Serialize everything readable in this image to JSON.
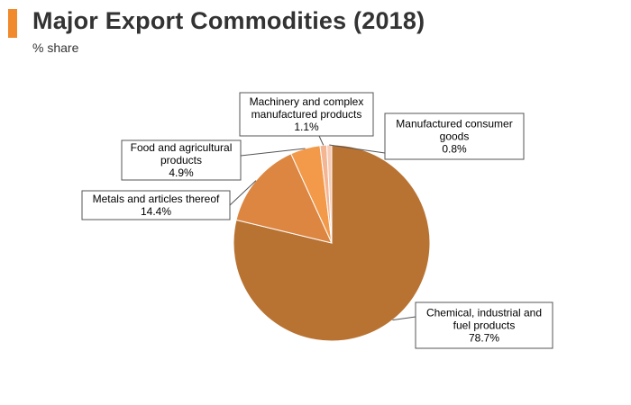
{
  "header": {
    "title": "Major Export Commodities (2018)",
    "subtitle": "% share",
    "accent_color": "#f08a2c"
  },
  "chart_data": {
    "type": "pie",
    "title": "Major Export Commodities (2018)",
    "subtitle": "% share",
    "slices": [
      {
        "name": "Chemical, industrial and fuel products",
        "value": 78.7,
        "value_label": "78.7%",
        "label_lines": [
          "Chemical, industrial and",
          "fuel products"
        ],
        "color": "#b87333"
      },
      {
        "name": "Metals and articles thereof",
        "value": 14.4,
        "value_label": "14.4%",
        "label_lines": [
          "Metals and articles thereof"
        ],
        "color": "#dc8641"
      },
      {
        "name": "Food and agricultural products",
        "value": 4.9,
        "value_label": "4.9%",
        "label_lines": [
          "Food and agricultural",
          "products"
        ],
        "color": "#f39a4a"
      },
      {
        "name": "Machinery and complex manufactured products",
        "value": 1.1,
        "value_label": "1.1%",
        "label_lines": [
          "Machinery and complex",
          "manufactured products"
        ],
        "color": "#f4b593"
      },
      {
        "name": "Manufactured consumer goods",
        "value": 0.8,
        "value_label": "0.8%",
        "label_lines": [
          "Manufactured consumer",
          "goods"
        ],
        "color": "#f8cbb5"
      }
    ]
  }
}
